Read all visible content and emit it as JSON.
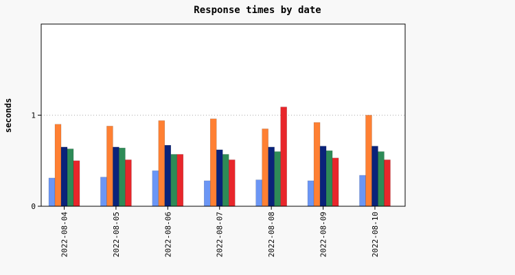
{
  "chart_data": {
    "type": "bar",
    "title": "Response times by date",
    "xlabel": "",
    "ylabel": "seconds",
    "ylim": [
      0,
      2
    ],
    "yticks": [
      0,
      1
    ],
    "grid": "horizontal dotted at 1",
    "legend": "none",
    "categories": [
      "2022-08-04",
      "2022-08-05",
      "2022-08-06",
      "2022-08-07",
      "2022-08-08",
      "2022-08-09",
      "2022-08-10"
    ],
    "series": [
      {
        "color": "#6b96f5",
        "values": [
          0.31,
          0.32,
          0.39,
          0.28,
          0.29,
          0.28,
          0.34
        ]
      },
      {
        "color": "#ff8033",
        "values": [
          0.9,
          0.88,
          0.94,
          0.96,
          0.85,
          0.92,
          1.0
        ]
      },
      {
        "color": "#0a237a",
        "values": [
          0.65,
          0.65,
          0.67,
          0.62,
          0.65,
          0.66,
          0.66
        ]
      },
      {
        "color": "#2e8b57",
        "values": [
          0.63,
          0.64,
          0.57,
          0.57,
          0.6,
          0.61,
          0.6
        ]
      },
      {
        "color": "#e8262b",
        "values": [
          0.5,
          0.51,
          0.57,
          0.51,
          1.09,
          0.53,
          0.51
        ]
      }
    ]
  }
}
